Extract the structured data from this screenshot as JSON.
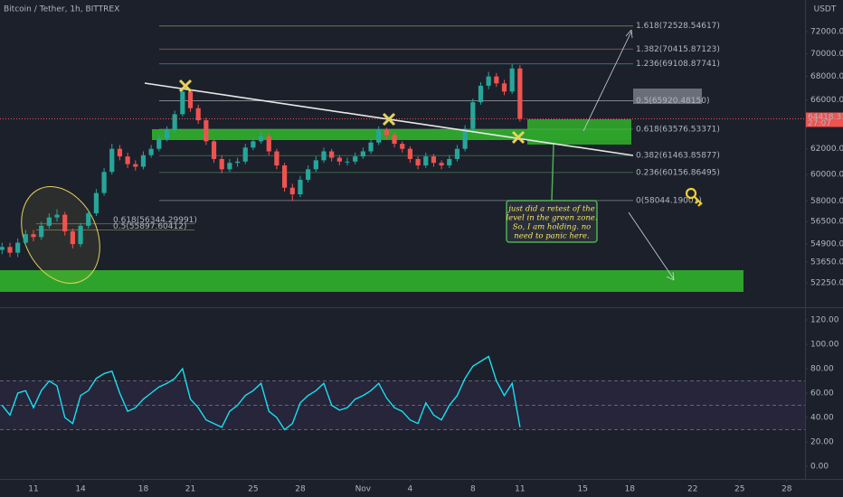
{
  "header": {
    "title": "Bitcoin / Tether, 1h, BITTREX"
  },
  "annotation": {
    "lines": [
      "just did a retest of the",
      "level in the green zone.",
      "So, I am holding. no",
      "need to panic here."
    ]
  },
  "chart_data": [
    {
      "type": "candlestick",
      "currency": "USDT",
      "log_scale": true,
      "up_color": "#26a69a",
      "down_color": "#ef5350",
      "x": [
        9,
        9.5,
        10,
        10.5,
        11,
        11.5,
        12,
        12.5,
        13,
        13.5,
        14,
        14.5,
        15,
        15.5,
        16,
        16.5,
        17,
        17.5,
        18,
        18.5,
        19,
        19.5,
        20,
        20.5,
        21,
        21.5,
        22,
        22.5,
        23,
        23.5,
        24,
        24.5,
        25,
        25.5,
        26,
        26.5,
        27,
        27.5,
        28,
        28.5,
        29,
        29.5,
        30,
        30.5,
        31,
        31.5,
        32,
        32.5,
        33,
        33.5,
        34,
        34.5,
        35,
        35.5,
        36,
        36.5,
        37,
        37.5,
        38,
        38.5,
        39,
        39.5,
        40,
        40.5,
        41,
        41.5,
        42
      ],
      "open": [
        54500,
        54700,
        54300,
        55000,
        55600,
        55400,
        56200,
        56800,
        57000,
        55800,
        54900,
        56200,
        57100,
        58600,
        60200,
        62000,
        61400,
        60800,
        60600,
        61500,
        62000,
        62800,
        63500,
        64800,
        66700,
        65300,
        64300,
        62600,
        61200,
        60400,
        60900,
        61000,
        62100,
        62600,
        63000,
        61800,
        60700,
        59000,
        58500,
        59600,
        60400,
        61100,
        61800,
        61300,
        61000,
        61000,
        61400,
        61800,
        62500,
        63500,
        63100,
        62400,
        62000,
        61200,
        60700,
        61400,
        60900,
        60700,
        61200,
        62000,
        63600,
        65800,
        67200,
        68000,
        67400,
        66700,
        68700
      ],
      "high": [
        55000,
        55000,
        55300,
        55900,
        55900,
        56500,
        57100,
        57400,
        57200,
        56000,
        56400,
        57400,
        58900,
        60500,
        62400,
        62300,
        61700,
        61100,
        61800,
        62300,
        63100,
        63800,
        65100,
        67000,
        66900,
        65600,
        64500,
        62800,
        61500,
        61200,
        61300,
        62400,
        62900,
        63400,
        63200,
        62000,
        60900,
        59300,
        59900,
        60700,
        61400,
        62100,
        62000,
        61500,
        61300,
        61700,
        62100,
        62800,
        63800,
        63700,
        63300,
        62600,
        62200,
        61400,
        61700,
        61600,
        61100,
        61500,
        62300,
        63900,
        66100,
        67500,
        68400,
        68300,
        67700,
        69100,
        69000
      ],
      "low": [
        54200,
        54000,
        54000,
        54800,
        55100,
        55200,
        56000,
        56500,
        55500,
        54600,
        54700,
        56000,
        56900,
        58400,
        60000,
        61100,
        60500,
        60300,
        60400,
        61300,
        61800,
        62600,
        63300,
        64600,
        65000,
        64000,
        62300,
        60900,
        60100,
        60200,
        60600,
        60800,
        61900,
        62400,
        61500,
        60400,
        58700,
        58000,
        58300,
        59400,
        60200,
        60900,
        61000,
        60700,
        60700,
        60800,
        61200,
        61600,
        62300,
        62800,
        62100,
        61700,
        60900,
        60400,
        60500,
        60600,
        60400,
        60500,
        61000,
        61800,
        63400,
        65600,
        66900,
        67100,
        66400,
        66500,
        64200
      ],
      "close": [
        54700,
        54300,
        55000,
        55600,
        55400,
        56200,
        56800,
        57000,
        55800,
        54900,
        56200,
        57100,
        58600,
        60200,
        62000,
        61400,
        60800,
        60600,
        61500,
        62000,
        62800,
        63500,
        64800,
        66700,
        65300,
        64300,
        62600,
        61200,
        60400,
        60900,
        61000,
        62100,
        62600,
        63000,
        61800,
        60700,
        59000,
        58500,
        59600,
        60400,
        61100,
        61800,
        61300,
        61000,
        61000,
        61400,
        61800,
        62500,
        63500,
        63100,
        62400,
        62000,
        61200,
        60700,
        61400,
        60900,
        60700,
        61200,
        62000,
        63600,
        65800,
        67200,
        68000,
        67400,
        66700,
        68700,
        64418
      ],
      "last_price": 64418.31436,
      "countdown": "27:07",
      "xlim": [
        8.867,
        60.164
      ],
      "xticks": [
        {
          "value": 11,
          "label": "11"
        },
        {
          "value": 14,
          "label": "14"
        },
        {
          "value": 18,
          "label": "18"
        },
        {
          "value": 21,
          "label": "21"
        },
        {
          "value": 25,
          "label": "25"
        },
        {
          "value": 28,
          "label": "28"
        },
        {
          "value": 32,
          "label": "Nov"
        },
        {
          "value": 35,
          "label": "4"
        },
        {
          "value": 39,
          "label": "8"
        },
        {
          "value": 42,
          "label": "11"
        },
        {
          "value": 46,
          "label": "15"
        },
        {
          "value": 49,
          "label": "18"
        },
        {
          "value": 53,
          "label": "22"
        },
        {
          "value": 56,
          "label": "25"
        },
        {
          "value": 59,
          "label": "28"
        }
      ],
      "ylim": [
        50650,
        74970
      ],
      "yticks": [
        {
          "value": 72000,
          "label": "72000.00000"
        },
        {
          "value": 70000,
          "label": "70000.00000"
        },
        {
          "value": 68000,
          "label": "68000.00000"
        },
        {
          "value": 66000,
          "label": "66000.00000"
        },
        {
          "value": 62000,
          "label": "62000.00000"
        },
        {
          "value": 60000,
          "label": "60000.00000"
        },
        {
          "value": 58000,
          "label": "58000.00000"
        },
        {
          "value": 56500,
          "label": "56500.00000"
        },
        {
          "value": 54900,
          "label": "54900.00000"
        },
        {
          "value": 53650,
          "label": "53650.00000"
        },
        {
          "value": 52250,
          "label": "52250.00000"
        }
      ],
      "fib_levels": [
        {
          "label": "1.618(72528.54617)",
          "value": 72528.54617,
          "color": "#e6dc6e"
        },
        {
          "label": "1.382(70415.87123)",
          "value": 70415.87123,
          "color": "#f08c7c"
        },
        {
          "label": "1.236(69108.87741)",
          "value": 69108.87741,
          "color": "#4dd0e1"
        },
        {
          "label": "0.5(65920.48150)",
          "value": 65920.4815,
          "color": "#ffffff"
        },
        {
          "label": "0.618(63576.53371)",
          "value": 63576.53371,
          "color": "#66bb6a"
        },
        {
          "label": "0.382(61463.85877)",
          "value": 61463.85877,
          "color": "#66bb6a"
        },
        {
          "label": "0.236(60156.86495)",
          "value": 60156.86495,
          "color": "#66bb6a"
        },
        {
          "label": "0(58044.19001)",
          "value": 58044.19001,
          "color": "#d1d4dc"
        }
      ],
      "fib_levels_left": [
        {
          "label": "0.618(56344.29991)",
          "value": 56344.29991,
          "color": "#f5e663"
        },
        {
          "label": "0.5(55897.60412)",
          "value": 55897.60412,
          "color": "#f5e663"
        }
      ]
    },
    {
      "type": "line",
      "x": [
        9,
        9.5,
        10,
        10.5,
        11,
        11.5,
        12,
        12.5,
        13,
        13.5,
        14,
        14.5,
        15,
        15.5,
        16,
        16.5,
        17,
        17.5,
        18,
        18.5,
        19,
        19.5,
        20,
        20.5,
        21,
        21.5,
        22,
        22.5,
        23,
        23.5,
        24,
        24.5,
        25,
        25.5,
        26,
        26.5,
        27,
        27.5,
        28,
        28.5,
        29,
        29.5,
        30,
        30.5,
        31,
        31.5,
        32,
        32.5,
        33,
        33.5,
        34,
        34.5,
        35,
        35.5,
        36,
        36.5,
        37,
        37.5,
        38,
        38.5,
        39,
        39.5,
        40,
        40.5,
        41,
        41.5,
        42
      ],
      "series": [
        {
          "color": "#18e0f0",
          "values": [
            50,
            42,
            60,
            62,
            48,
            62,
            70,
            66,
            40,
            35,
            58,
            62,
            72,
            76,
            78,
            60,
            45,
            48,
            55,
            60,
            65,
            68,
            72,
            80,
            55,
            48,
            38,
            35,
            32,
            45,
            50,
            58,
            62,
            68,
            45,
            40,
            30,
            35,
            52,
            58,
            62,
            68,
            50,
            46,
            48,
            55,
            58,
            62,
            68,
            56,
            48,
            45,
            38,
            35,
            52,
            42,
            38,
            50,
            58,
            72,
            82,
            86,
            90,
            70,
            58,
            68,
            32
          ]
        }
      ],
      "levels": [
        30,
        50,
        70
      ],
      "ylim": [
        -10.4,
        128.9
      ],
      "yticks": [
        {
          "value": 120,
          "label": "120.00"
        },
        {
          "value": 100,
          "label": "100.00"
        },
        {
          "value": 80,
          "label": "80.00"
        },
        {
          "value": 60,
          "label": "60.00"
        },
        {
          "value": 40,
          "label": "40.00"
        },
        {
          "value": 20,
          "label": "20.00"
        },
        {
          "value": 0,
          "label": "0.00"
        }
      ]
    }
  ]
}
